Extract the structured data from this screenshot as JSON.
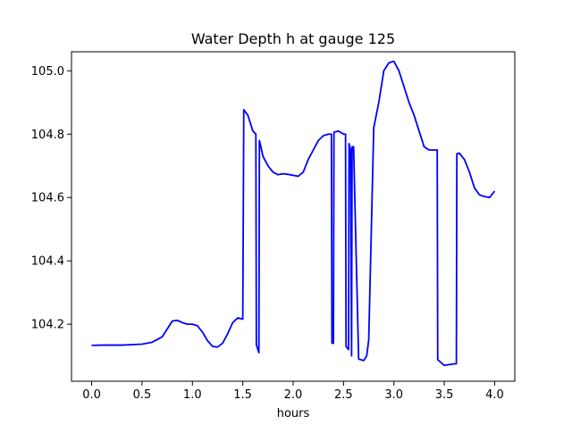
{
  "chart_data": {
    "type": "line",
    "title": "Water Depth h at gauge 125",
    "xlabel": "hours",
    "ylabel": "",
    "xlim": [
      -0.2,
      4.2
    ],
    "ylim": [
      104.02,
      105.06
    ],
    "xticks": [
      0.0,
      0.5,
      1.0,
      1.5,
      2.0,
      2.5,
      3.0,
      3.5,
      4.0
    ],
    "xtick_labels": [
      "0.0",
      "0.5",
      "1.0",
      "1.5",
      "2.0",
      "2.5",
      "3.0",
      "3.5",
      "4.0"
    ],
    "yticks": [
      104.2,
      104.4,
      104.6,
      104.8,
      105.0
    ],
    "ytick_labels": [
      "104.2",
      "104.4",
      "104.6",
      "104.8",
      "105.0"
    ],
    "grid": false,
    "legend": "none",
    "series": [
      {
        "color": "#0000ff",
        "x": [
          0.0,
          0.1,
          0.3,
          0.5,
          0.6,
          0.7,
          0.75,
          0.8,
          0.85,
          0.9,
          0.95,
          1.0,
          1.05,
          1.1,
          1.15,
          1.2,
          1.25,
          1.3,
          1.35,
          1.4,
          1.45,
          1.5,
          1.51,
          1.55,
          1.6,
          1.63,
          1.635,
          1.66,
          1.665,
          1.68,
          1.7,
          1.75,
          1.8,
          1.85,
          1.9,
          1.95,
          2.0,
          2.05,
          2.1,
          2.15,
          2.2,
          2.25,
          2.3,
          2.35,
          2.38,
          2.385,
          2.4,
          2.405,
          2.45,
          2.5,
          2.52,
          2.525,
          2.55,
          2.555,
          2.57,
          2.58,
          2.585,
          2.6,
          2.65,
          2.7,
          2.73,
          2.75,
          2.8,
          2.85,
          2.9,
          2.95,
          3.0,
          3.05,
          3.1,
          3.15,
          3.2,
          3.25,
          3.3,
          3.35,
          3.4,
          3.43,
          3.435,
          3.5,
          3.6,
          3.62,
          3.625,
          3.65,
          3.7,
          3.75,
          3.8,
          3.85,
          3.9,
          3.95,
          4.0
        ],
        "y": [
          104.133,
          104.134,
          104.134,
          104.137,
          104.143,
          104.16,
          104.185,
          104.21,
          104.212,
          104.205,
          104.2,
          104.2,
          104.195,
          104.175,
          104.148,
          104.13,
          104.128,
          104.14,
          104.17,
          104.205,
          104.22,
          104.216,
          104.877,
          104.86,
          104.81,
          104.8,
          104.135,
          104.11,
          104.78,
          104.76,
          104.73,
          104.7,
          104.68,
          104.672,
          104.675,
          104.673,
          104.67,
          104.667,
          104.68,
          104.72,
          104.75,
          104.78,
          104.795,
          104.8,
          104.8,
          104.14,
          104.14,
          104.806,
          104.81,
          104.8,
          104.8,
          104.13,
          104.12,
          104.77,
          104.75,
          104.1,
          104.76,
          104.76,
          104.09,
          104.085,
          104.1,
          104.15,
          104.82,
          104.9,
          105.0,
          105.025,
          105.03,
          105.0,
          104.95,
          104.9,
          104.86,
          104.81,
          104.76,
          104.75,
          104.75,
          104.75,
          104.088,
          104.07,
          104.075,
          104.075,
          104.738,
          104.74,
          104.72,
          104.68,
          104.63,
          104.608,
          104.603,
          104.6,
          104.62
        ]
      }
    ]
  }
}
